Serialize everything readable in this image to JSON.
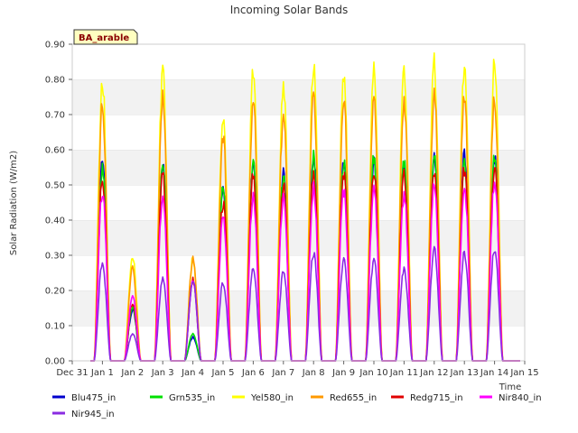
{
  "chart_data": {
    "type": "line",
    "title": "Incoming Solar Bands",
    "xlabel": "Time",
    "ylabel": "Solar Radiation (W/m2)",
    "site_label": "BA_arable",
    "ylim": [
      0,
      0.9
    ],
    "xlim": [
      0,
      15
    ],
    "x_tick_values": [
      0,
      1,
      2,
      3,
      4,
      5,
      6,
      7,
      8,
      9,
      10,
      11,
      12,
      13,
      14,
      15
    ],
    "x_tick_labels": [
      "Dec 31",
      "Jan 1",
      "Jan 2",
      "Jan 3",
      "Jan 4",
      "Jan 5",
      "Jan 6",
      "Jan 7",
      "Jan 8",
      "Jan 9",
      "Jan 10",
      "Jan 11",
      "Jan 12",
      "Jan 13",
      "Jan 14",
      "Jan 15"
    ],
    "y_tick_values": [
      0,
      0.1,
      0.2,
      0.3,
      0.4,
      0.5,
      0.6,
      0.7,
      0.8,
      0.9
    ],
    "y_tick_labels": [
      "0.00",
      "0.10",
      "0.20",
      "0.30",
      "0.40",
      "0.50",
      "0.60",
      "0.70",
      "0.80",
      "0.90"
    ],
    "grid": "horizontal bands",
    "legend_position": "bottom",
    "day_centers": [
      "Jan 1",
      "Jan 2",
      "Jan 3",
      "Jan 4",
      "Jan 5",
      "Jan 6",
      "Jan 7",
      "Jan 8",
      "Jan 9",
      "Jan 10",
      "Jan 11",
      "Jan 12",
      "Jan 13",
      "Jan 14"
    ],
    "series": [
      {
        "name": "Blu475_in",
        "color": "#0000cd",
        "peaks": [
          0.58,
          0.15,
          0.58,
          0.07,
          0.52,
          0.58,
          0.57,
          0.6,
          0.58,
          0.59,
          0.58,
          0.6,
          0.61,
          0.61
        ]
      },
      {
        "name": "Grn535_in",
        "color": "#00e000",
        "peaks": [
          0.57,
          0.16,
          0.59,
          0.08,
          0.52,
          0.59,
          0.55,
          0.6,
          0.59,
          0.6,
          0.59,
          0.6,
          0.6,
          0.61
        ]
      },
      {
        "name": "Yel580_in",
        "color": "#ffff00",
        "peaks": [
          0.83,
          0.31,
          0.86,
          0.3,
          0.73,
          0.86,
          0.83,
          0.87,
          0.85,
          0.88,
          0.86,
          0.88,
          0.88,
          0.88
        ]
      },
      {
        "name": "Red655_in",
        "color": "#ff9900",
        "peaks": [
          0.75,
          0.27,
          0.78,
          0.3,
          0.66,
          0.77,
          0.73,
          0.78,
          0.77,
          0.79,
          0.77,
          0.79,
          0.78,
          0.78
        ]
      },
      {
        "name": "Redg715_in",
        "color": "#e00000",
        "peaks": [
          0.54,
          0.17,
          0.55,
          0.24,
          0.47,
          0.55,
          0.52,
          0.56,
          0.56,
          0.57,
          0.55,
          0.57,
          0.57,
          0.57
        ]
      },
      {
        "name": "Nir840_in",
        "color": "#ff00ff",
        "peaks": [
          0.5,
          0.19,
          0.48,
          0.24,
          0.42,
          0.49,
          0.48,
          0.51,
          0.5,
          0.51,
          0.49,
          0.52,
          0.52,
          0.53
        ]
      },
      {
        "name": "Nir945_in",
        "color": "#8a2be2",
        "peaks": [
          0.29,
          0.08,
          0.24,
          0.24,
          0.23,
          0.27,
          0.26,
          0.32,
          0.3,
          0.3,
          0.27,
          0.33,
          0.32,
          0.33
        ]
      }
    ]
  }
}
